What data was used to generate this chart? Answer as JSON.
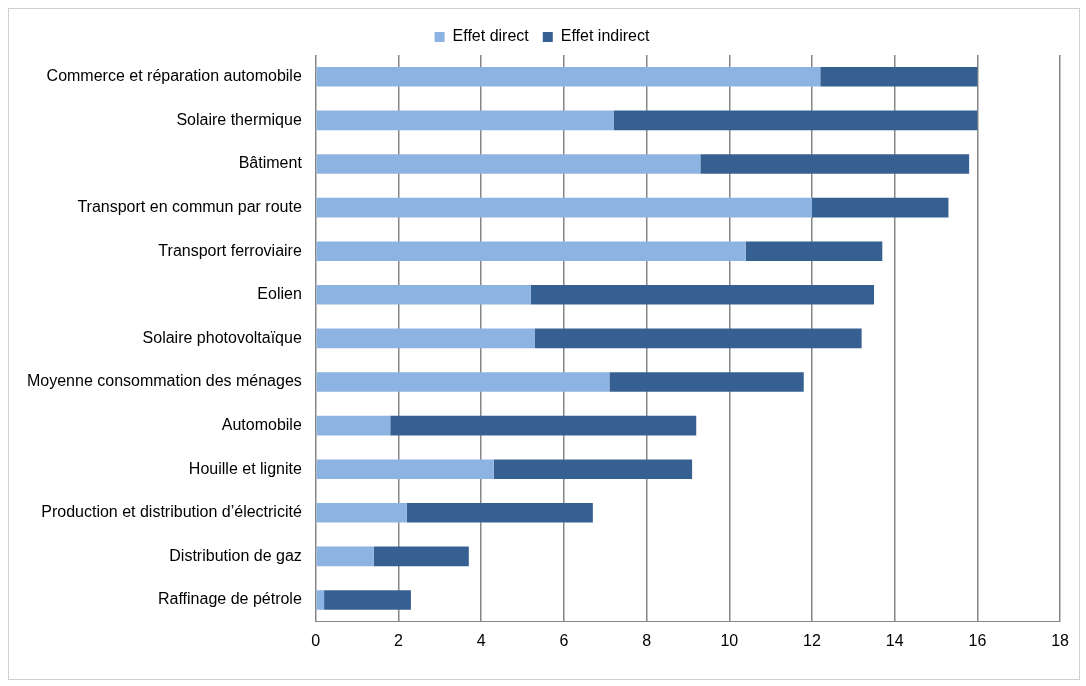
{
  "chart_data": {
    "type": "bar",
    "orientation": "horizontal",
    "stacked": true,
    "categories": [
      "Commerce et réparation automobile",
      "Solaire thermique",
      "Bâtiment",
      "Transport en commun par route",
      "Transport ferroviaire",
      "Eolien",
      "Solaire photovoltaïque",
      "Moyenne consommation des ménages",
      "Automobile",
      "Houille et lignite",
      "Production et distribution d’électricité",
      "Distribution de gaz",
      "Raffinage de pétrole"
    ],
    "series": [
      {
        "name": "Effet direct",
        "color": "#8db3e2",
        "values": [
          12.2,
          7.2,
          9.3,
          12.0,
          10.4,
          5.2,
          5.3,
          7.1,
          1.8,
          4.3,
          2.2,
          1.4,
          0.2
        ]
      },
      {
        "name": "Effet indirect",
        "color": "#366092",
        "values": [
          3.8,
          8.8,
          6.5,
          3.3,
          3.3,
          8.3,
          7.9,
          4.7,
          7.4,
          4.8,
          4.5,
          2.3,
          2.1
        ]
      }
    ],
    "xlim": [
      0,
      18
    ],
    "xticks": [
      0,
      2,
      4,
      6,
      8,
      10,
      12,
      14,
      16,
      18
    ],
    "grid": "x",
    "legend": "top"
  }
}
